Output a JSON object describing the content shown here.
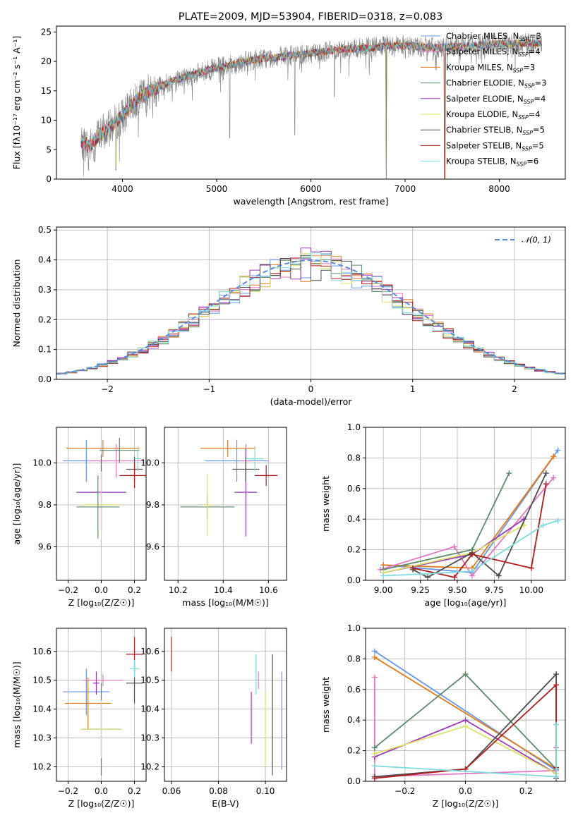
{
  "figure_title": "PLATE=2009, MJD=53904, FIBERID=0318, z=0.083",
  "colors": {
    "Chabrier MILES": "#6495ed",
    "Salpeter MILES": "#e377c2",
    "Kroupa MILES": "#e07b1a",
    "Chabrier ELODIE": "#5b8a68",
    "Salpeter ELODIE": "#9b39b8",
    "Kroupa ELODIE": "#dde26a",
    "Chabrier STELIB": "#4d4d4d",
    "Salpeter STELIB": "#b01c1c",
    "Kroupa STELIB": "#7fdbe0",
    "spectrum": "#808080",
    "normal": "#5b8bd9"
  },
  "chart_data": [
    {
      "id": "spectrum",
      "type": "line",
      "xlabel": "wavelength [Angstrom, rest frame]",
      "ylabel": "Flux [fλ10⁻¹⁷ erg cm⁻² s⁻¹ A⁻¹]",
      "xlim": [
        3300,
        8700
      ],
      "ylim": [
        0,
        26
      ],
      "xticks": [
        4000,
        5000,
        6000,
        7000,
        8000
      ],
      "yticks": [
        0,
        5,
        10,
        15,
        20,
        25
      ],
      "legend_position": "right",
      "legend": [
        {
          "model": "Chabrier MILES",
          "label": "Chabrier MILES, N",
          "nssp": "=3"
        },
        {
          "model": "Salpeter MILES",
          "label": "Salpeter MILES, N",
          "nssp": "=4"
        },
        {
          "model": "Kroupa MILES",
          "label": "Kroupa MILES, N",
          "nssp": "=3"
        },
        {
          "model": "Chabrier ELODIE",
          "label": "Chabrier ELODIE, N",
          "nssp": "=3"
        },
        {
          "model": "Salpeter ELODIE",
          "label": "Salpeter ELODIE, N",
          "nssp": "=4"
        },
        {
          "model": "Kroupa ELODIE",
          "label": "Kroupa ELODIE, N",
          "nssp": "=4"
        },
        {
          "model": "Chabrier STELIB",
          "label": "Chabrier STELIB, N",
          "nssp": "=5"
        },
        {
          "model": "Salpeter STELIB",
          "label": "Salpeter STELIB, N",
          "nssp": "=5"
        },
        {
          "model": "Kroupa STELIB",
          "label": "Kroupa STELIB, N",
          "nssp": "=6"
        }
      ],
      "nssp_subscript": "SSP",
      "continuum": [
        [
          3560,
          6.5
        ],
        [
          3650,
          5.5
        ],
        [
          3750,
          7.5
        ],
        [
          3850,
          8.5
        ],
        [
          3950,
          10.0
        ],
        [
          4050,
          11.5
        ],
        [
          4150,
          13.5
        ],
        [
          4300,
          15.0
        ],
        [
          4500,
          16.5
        ],
        [
          4700,
          17.5
        ],
        [
          4900,
          18.5
        ],
        [
          5100,
          19.2
        ],
        [
          5300,
          20.0
        ],
        [
          5500,
          20.5
        ],
        [
          5700,
          20.8
        ],
        [
          5900,
          21.2
        ],
        [
          6100,
          21.6
        ],
        [
          6300,
          22.0
        ],
        [
          6500,
          22.2
        ],
        [
          6700,
          22.4
        ],
        [
          6900,
          22.8
        ],
        [
          7100,
          22.6
        ],
        [
          7300,
          22.3
        ],
        [
          7500,
          22.5
        ],
        [
          7700,
          22.6
        ],
        [
          7900,
          22.9
        ],
        [
          8100,
          23.0
        ],
        [
          8300,
          23.1
        ],
        [
          8450,
          23.0
        ]
      ],
      "dips": [
        [
          3590,
          0.5
        ],
        [
          3640,
          1.5
        ],
        [
          3700,
          3.0
        ],
        [
          3930,
          1.5
        ],
        [
          3968,
          3.0
        ],
        [
          5140,
          7.0
        ],
        [
          5830,
          7.5
        ],
        [
          6800,
          0.0
        ],
        [
          7420,
          0.0
        ],
        [
          6250,
          14.0
        ]
      ]
    },
    {
      "id": "residuals",
      "type": "histogram",
      "xlabel": "(data-model)/error",
      "ylabel": "Normed distribution",
      "xlim": [
        -2.5,
        2.5
      ],
      "ylim": [
        0,
        0.51
      ],
      "xticks": [
        -2,
        -1,
        0,
        1,
        2
      ],
      "xtick_labels": [
        "−2",
        "−1",
        "0",
        "1",
        "2"
      ],
      "yticks": [
        0.0,
        0.1,
        0.2,
        0.3,
        0.4,
        0.5
      ],
      "ytick_labels": [
        "0.0",
        "0.1",
        "0.2",
        "0.3",
        "0.4",
        "0.5"
      ],
      "grid": true,
      "bin_width": 0.1,
      "legend_position": "top-right",
      "legend_label": "𝒩(0, 1)"
    },
    {
      "id": "age-vs-Z",
      "type": "scatter",
      "xlabel": "Z [log₁₀(Z/Z☉)]",
      "ylabel": "age  [log₁₀(age/yr)]",
      "xlim": [
        -0.27,
        0.27
      ],
      "ylim": [
        9.44,
        10.17
      ],
      "xticks": [
        -0.2,
        0.0,
        0.2
      ],
      "xtick_labels": [
        "−0.2",
        "0.0",
        "0.2"
      ],
      "yticks": [
        9.6,
        9.8,
        10.0
      ],
      "ytick_labels": [
        "9.6",
        "9.8",
        "10.0"
      ],
      "grid": true,
      "points": [
        {
          "model": "Chabrier MILES",
          "x": -0.09,
          "xerr": 0.14,
          "y": 10.01,
          "yerr": 0.1
        },
        {
          "model": "Kroupa MILES",
          "x": 0.01,
          "xerr": 0.22,
          "y": 10.07,
          "yerr": 0.04
        },
        {
          "model": "Salpeter MILES",
          "x": 0.09,
          "xerr": 0.17,
          "y": 10.01,
          "yerr": 0.08
        },
        {
          "model": "Chabrier ELODIE",
          "x": 0.11,
          "xerr": 0.12,
          "y": 10.06,
          "yerr": 0.06
        },
        {
          "model": "Salpeter ELODIE",
          "x": 0.0,
          "xerr": 0.15,
          "y": 9.86,
          "yerr": 0.18
        },
        {
          "model": "Kroupa ELODIE",
          "x": 0.0,
          "xerr": 0.12,
          "y": 9.8,
          "yerr": 0.16
        },
        {
          "model": "Chabrier STELIB",
          "x": 0.2,
          "xerr": 0.05,
          "y": 9.97,
          "yerr": 0.06
        },
        {
          "model": "Salpeter STELIB",
          "x": 0.2,
          "xerr": 0.09,
          "y": 9.94,
          "yerr": 0.06
        },
        {
          "model": "Kroupa STELIB",
          "x": 0.22,
          "xerr": 0.02,
          "y": 10.02,
          "yerr": 0.06
        },
        {
          "model": "Chabrier ELODIE",
          "x": -0.02,
          "xerr": 0.13,
          "y": 9.79,
          "yerr": 0.15
        }
      ]
    },
    {
      "id": "age-vs-mass",
      "type": "scatter",
      "xlabel": "mass [log₁₀(M/M☉)]",
      "ylabel": "",
      "xlim": [
        10.14,
        10.68
      ],
      "ylim": [
        9.44,
        10.17
      ],
      "xticks": [
        10.2,
        10.4,
        10.6
      ],
      "xtick_labels": [
        "10.2",
        "10.4",
        "10.6"
      ],
      "yticks": [
        9.6,
        9.8,
        10.0
      ],
      "ytick_labels": [
        "9.6",
        "9.8",
        "10.0"
      ],
      "grid": true,
      "points": [
        {
          "model": "Chabrier MILES",
          "x": 10.46,
          "xerr": 0.14,
          "y": 10.01,
          "yerr": 0.1
        },
        {
          "model": "Kroupa MILES",
          "x": 10.42,
          "xerr": 0.12,
          "y": 10.07,
          "yerr": 0.04
        },
        {
          "model": "Salpeter MILES",
          "x": 10.5,
          "xerr": 0.02,
          "y": 10.01,
          "yerr": 0.08
        },
        {
          "model": "Chabrier ELODIE",
          "x": 10.33,
          "xerr": 0.12,
          "y": 9.79,
          "yerr": 0.06
        },
        {
          "model": "Salpeter ELODIE",
          "x": 10.5,
          "xerr": 0.05,
          "y": 9.86,
          "yerr": 0.21
        },
        {
          "model": "Kroupa ELODIE",
          "x": 10.33,
          "xerr": 0.02,
          "y": 9.8,
          "yerr": 0.15
        },
        {
          "model": "Chabrier STELIB",
          "x": 10.5,
          "xerr": 0.06,
          "y": 9.97,
          "yerr": 0.06
        },
        {
          "model": "Salpeter STELIB",
          "x": 10.59,
          "xerr": 0.05,
          "y": 9.94,
          "yerr": 0.05
        },
        {
          "model": "Kroupa STELIB",
          "x": 10.54,
          "xerr": 0.04,
          "y": 10.02,
          "yerr": 0.06
        }
      ]
    },
    {
      "id": "weight-vs-age",
      "type": "line",
      "xlabel": "age  [log₁₀(age/yr)]",
      "ylabel": "mass weight",
      "xlim": [
        8.88,
        10.23
      ],
      "ylim": [
        0,
        1
      ],
      "xticks": [
        9.0,
        9.25,
        9.5,
        9.75,
        10.0
      ],
      "xtick_labels": [
        "9.00",
        "9.25",
        "9.50",
        "9.75",
        "10.00"
      ],
      "yticks": [
        0.0,
        0.2,
        0.4,
        0.6,
        0.8,
        1.0
      ],
      "ytick_labels": [
        "0.0",
        "0.2",
        "0.4",
        "0.6",
        "0.8",
        "1.0"
      ],
      "grid": true,
      "series": [
        {
          "model": "Chabrier MILES",
          "x": [
            9.0,
            9.6,
            10.18
          ],
          "y": [
            0.1,
            0.05,
            0.85
          ]
        },
        {
          "model": "Kroupa MILES",
          "x": [
            9.0,
            9.6,
            10.15
          ],
          "y": [
            0.1,
            0.08,
            0.81
          ]
        },
        {
          "model": "Salpeter MILES",
          "x": [
            8.98,
            9.48,
            9.6,
            10.15
          ],
          "y": [
            0.07,
            0.22,
            0.03,
            0.67
          ]
        },
        {
          "model": "Chabrier ELODIE",
          "x": [
            9.0,
            9.6,
            9.85
          ],
          "y": [
            0.07,
            0.2,
            0.7
          ]
        },
        {
          "model": "Salpeter ELODIE",
          "x": [
            9.0,
            9.6,
            9.95
          ],
          "y": [
            0.05,
            0.17,
            0.4
          ]
        },
        {
          "model": "Kroupa ELODIE",
          "x": [
            9.0,
            9.6,
            9.95
          ],
          "y": [
            0.05,
            0.18,
            0.36
          ]
        },
        {
          "model": "Chabrier STELIB",
          "x": [
            9.2,
            9.3,
            9.6,
            9.78,
            10.1
          ],
          "y": [
            0.07,
            0.02,
            0.18,
            0.03,
            0.7
          ]
        },
        {
          "model": "Salpeter STELIB",
          "x": [
            9.2,
            9.48,
            9.6,
            10.0,
            10.1
          ],
          "y": [
            0.08,
            0.02,
            0.17,
            0.08,
            0.63
          ]
        },
        {
          "model": "Kroupa STELIB",
          "x": [
            9.0,
            9.25,
            9.6,
            10.08,
            10.18
          ],
          "y": [
            0.03,
            0.04,
            0.06,
            0.36,
            0.39
          ]
        }
      ]
    },
    {
      "id": "mass-vs-Z",
      "type": "scatter",
      "xlabel": "Z [log₁₀(Z/Z☉)]",
      "ylabel": "mass [log₁₀(M/M☉)]",
      "xlim": [
        -0.27,
        0.27
      ],
      "ylim": [
        10.15,
        10.68
      ],
      "xticks": [
        -0.2,
        0.0,
        0.2
      ],
      "xtick_labels": [
        "−0.2",
        "0.0",
        "0.2"
      ],
      "yticks": [
        10.2,
        10.3,
        10.4,
        10.5,
        10.6
      ],
      "ytick_labels": [
        "10.2",
        "10.3",
        "10.4",
        "10.5",
        "10.6"
      ],
      "grid": true,
      "points": [
        {
          "model": "Chabrier MILES",
          "x": -0.09,
          "xerr": 0.14,
          "y": 10.46,
          "yerr": 0.08
        },
        {
          "model": "Kroupa MILES",
          "x": -0.08,
          "xerr": 0.14,
          "y": 10.42,
          "yerr": 0.09
        },
        {
          "model": "Salpeter MILES",
          "x": 0.01,
          "xerr": 0.12,
          "y": 10.5,
          "yerr": 0.02
        },
        {
          "model": "Chabrier ELODIE",
          "x": 0.0,
          "xerr": 0.12,
          "y": 10.33,
          "yerr": 0.16
        },
        {
          "model": "Salpeter ELODIE",
          "x": -0.03,
          "xerr": 0.02,
          "y": 10.49,
          "yerr": 0.04
        },
        {
          "model": "Kroupa ELODIE",
          "x": 0.0,
          "xerr": 0.12,
          "y": 10.33,
          "yerr": 0.1
        },
        {
          "model": "Chabrier STELIB",
          "x": 0.2,
          "xerr": 0.05,
          "y": 10.49,
          "yerr": 0.07
        },
        {
          "model": "Salpeter STELIB",
          "x": 0.2,
          "xerr": 0.05,
          "y": 10.59,
          "yerr": 0.06
        },
        {
          "model": "Kroupa STELIB",
          "x": 0.2,
          "xerr": 0.03,
          "y": 10.54,
          "yerr": 0.03
        }
      ]
    },
    {
      "id": "mass-vs-ebv",
      "type": "scatter",
      "xlabel": "E(B-V)",
      "ylabel": "",
      "xlim": [
        0.057,
        0.109
      ],
      "ylim": [
        10.15,
        10.68
      ],
      "xticks": [
        0.06,
        0.08,
        0.1
      ],
      "xtick_labels": [
        "0.06",
        "0.08",
        "0.10"
      ],
      "yticks": [
        10.2,
        10.3,
        10.4,
        10.5,
        10.6
      ],
      "ytick_labels": [
        "10.2",
        "10.3",
        "10.4",
        "10.5",
        "10.6"
      ],
      "grid": true,
      "points": [
        {
          "model": "Salpeter STELIB",
          "x": 0.06,
          "xerr": 0,
          "y": 10.59,
          "yerr": 0.06
        },
        {
          "model": "Salpeter ELODIE",
          "x": 0.094,
          "xerr": 0,
          "y": 10.37,
          "yerr": 0.09
        },
        {
          "model": "Kroupa STELIB",
          "x": 0.096,
          "xerr": 0,
          "y": 10.52,
          "yerr": 0.07
        },
        {
          "model": "Salpeter MILES",
          "x": 0.097,
          "xerr": 0,
          "y": 10.5,
          "yerr": 0.03
        },
        {
          "model": "Kroupa ELODIE",
          "x": 0.1,
          "xerr": 0,
          "y": 10.33,
          "yerr": 0.13
        },
        {
          "model": "Chabrier STELIB",
          "x": 0.103,
          "xerr": 0,
          "y": 10.38,
          "yerr": 0.21
        },
        {
          "model": "Chabrier MILES",
          "x": 0.107,
          "xerr": 0,
          "y": 10.36,
          "yerr": 0.17
        }
      ]
    },
    {
      "id": "weight-vs-Z",
      "type": "line",
      "xlabel": "Z [log₁₀(Z/Z☉)]",
      "ylabel": "mass weight",
      "xlim": [
        -0.33,
        0.33
      ],
      "ylim": [
        0,
        1
      ],
      "xticks": [
        -0.2,
        0.0,
        0.2
      ],
      "xtick_labels": [
        "−0.2",
        "0.0",
        "0.2"
      ],
      "yticks": [
        0.0,
        0.2,
        0.4,
        0.6,
        0.8,
        1.0
      ],
      "ytick_labels": [
        "0.0",
        "0.2",
        "0.4",
        "0.6",
        "0.8",
        "1.0"
      ],
      "grid": true,
      "series": [
        {
          "model": "Chabrier MILES",
          "x": [
            -0.3,
            0.3
          ],
          "y": [
            0.85,
            0.07
          ]
        },
        {
          "model": "Kroupa MILES",
          "x": [
            -0.3,
            0.3
          ],
          "y": [
            0.81,
            0.08
          ]
        },
        {
          "model": "Salpeter MILES",
          "x": [
            -0.3,
            -0.3,
            0.3,
            0.3
          ],
          "y": [
            0.68,
            0.03,
            0.07,
            0.22
          ]
        },
        {
          "model": "Chabrier ELODIE",
          "x": [
            -0.3,
            0.0,
            0.3
          ],
          "y": [
            0.22,
            0.7,
            0.08
          ]
        },
        {
          "model": "Salpeter ELODIE",
          "x": [
            -0.3,
            0.0,
            0.3
          ],
          "y": [
            0.16,
            0.4,
            0.05
          ]
        },
        {
          "model": "Kroupa ELODIE",
          "x": [
            -0.3,
            0.0,
            0.3
          ],
          "y": [
            0.18,
            0.36,
            0.05
          ]
        },
        {
          "model": "Chabrier STELIB",
          "x": [
            -0.3,
            0.0,
            0.3,
            0.3
          ],
          "y": [
            0.03,
            0.08,
            0.7,
            0.02
          ]
        },
        {
          "model": "Salpeter STELIB",
          "x": [
            -0.3,
            0.0,
            0.3,
            0.3
          ],
          "y": [
            0.02,
            0.08,
            0.63,
            0.09
          ]
        },
        {
          "model": "Kroupa STELIB",
          "x": [
            -0.3,
            0.3,
            0.3
          ],
          "y": [
            0.1,
            0.03,
            0.37
          ]
        }
      ]
    }
  ]
}
